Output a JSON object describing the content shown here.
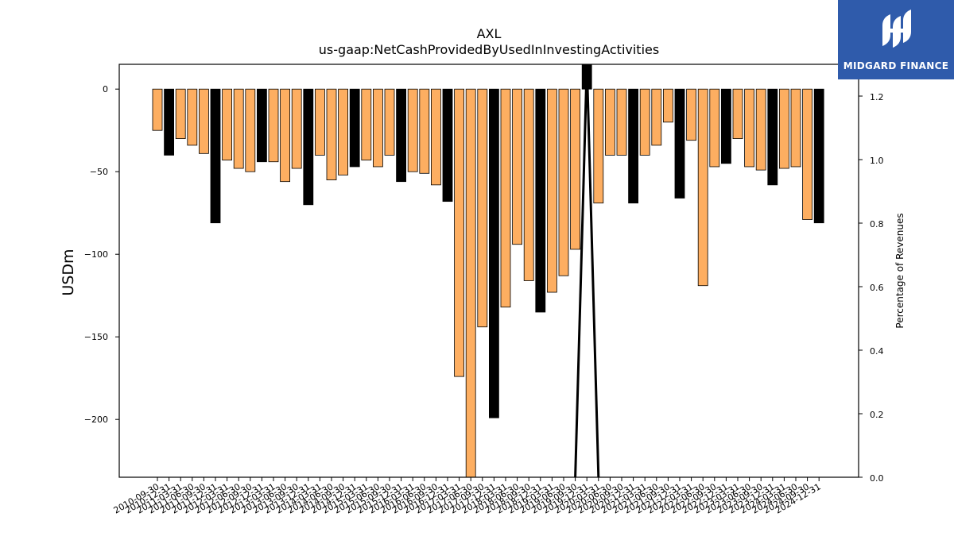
{
  "logo": {
    "text": "MIDGARD FINANCE"
  },
  "colors": {
    "bar_normal": "#fdae61",
    "bar_highlight": "#000000",
    "bar_edge": "#000000",
    "logo_bg": "#2f5bab"
  },
  "chart_data": {
    "type": "bar",
    "title": "AXL",
    "subtitle": "us-gaap:NetCashProvidedByUsedInInvestingActivities",
    "ylabel": "USDm",
    "y2label": "Percentage of Revenues",
    "ylim": [
      -235,
      15
    ],
    "y2lim": [
      0.0,
      1.3
    ],
    "yticks": [
      0,
      -50,
      -100,
      -150,
      -200
    ],
    "y2ticks": [
      0.0,
      0.2,
      0.4,
      0.6,
      0.8,
      1.0,
      1.2
    ],
    "grid": false,
    "categories": [
      "2010-09-30",
      "2010-12-31",
      "2011-03-31",
      "2011-06-30",
      "2011-09-30",
      "2011-12-31",
      "2012-03-31",
      "2012-06-30",
      "2012-09-30",
      "2012-12-31",
      "2013-03-31",
      "2013-06-30",
      "2013-09-30",
      "2013-12-31",
      "2014-03-31",
      "2014-06-30",
      "2014-09-30",
      "2014-12-31",
      "2015-03-31",
      "2015-06-30",
      "2015-09-30",
      "2015-12-31",
      "2016-03-31",
      "2016-06-30",
      "2016-09-30",
      "2016-12-31",
      "2017-03-31",
      "2017-06-30",
      "2017-09-30",
      "2017-12-31",
      "2018-03-31",
      "2018-06-30",
      "2018-09-30",
      "2018-12-31",
      "2019-03-31",
      "2019-06-30",
      "2019-09-30",
      "2019-12-31",
      "2020-03-31",
      "2020-06-30",
      "2020-09-30",
      "2020-12-31",
      "2021-03-31",
      "2021-06-30",
      "2021-09-30",
      "2021-12-31",
      "2022-03-31",
      "2022-06-30",
      "2022-09-30",
      "2022-12-31",
      "2023-03-31",
      "2023-06-30",
      "2023-09-30",
      "2023-12-31",
      "2024-03-31",
      "2024-06-30",
      "2024-09-30",
      "2024-12-31"
    ],
    "values": [
      -25,
      -40,
      -30,
      -34,
      -39,
      -81,
      -43,
      -48,
      -50,
      -44,
      -44,
      -56,
      -48,
      -70,
      -40,
      -55,
      -52,
      -47,
      -43,
      -47,
      -40,
      -56,
      -50,
      -51,
      -58,
      -68,
      -174,
      -235,
      -144,
      -199,
      -132,
      -94,
      -116,
      -135,
      -123,
      -113,
      -97,
      15,
      -69,
      -40,
      -40,
      -69,
      -40,
      -34,
      -20,
      -66,
      -31,
      -119,
      -47,
      -45,
      -30,
      -47,
      -49,
      -58,
      -48,
      -47,
      -79,
      -81
    ],
    "highlight": [
      false,
      true,
      false,
      false,
      false,
      true,
      false,
      false,
      false,
      true,
      false,
      false,
      false,
      true,
      false,
      false,
      false,
      true,
      false,
      false,
      false,
      true,
      false,
      false,
      false,
      true,
      false,
      false,
      false,
      true,
      false,
      false,
      false,
      true,
      false,
      false,
      false,
      true,
      false,
      false,
      false,
      true,
      false,
      false,
      false,
      true,
      false,
      false,
      false,
      true,
      false,
      false,
      false,
      true,
      false,
      false,
      false,
      true
    ],
    "ratio_series": {
      "name": "",
      "x": [
        "2019-09-30",
        "2019-12-31",
        "2020-03-31"
      ],
      "values": [
        0.0,
        1.3,
        0.0
      ]
    }
  }
}
